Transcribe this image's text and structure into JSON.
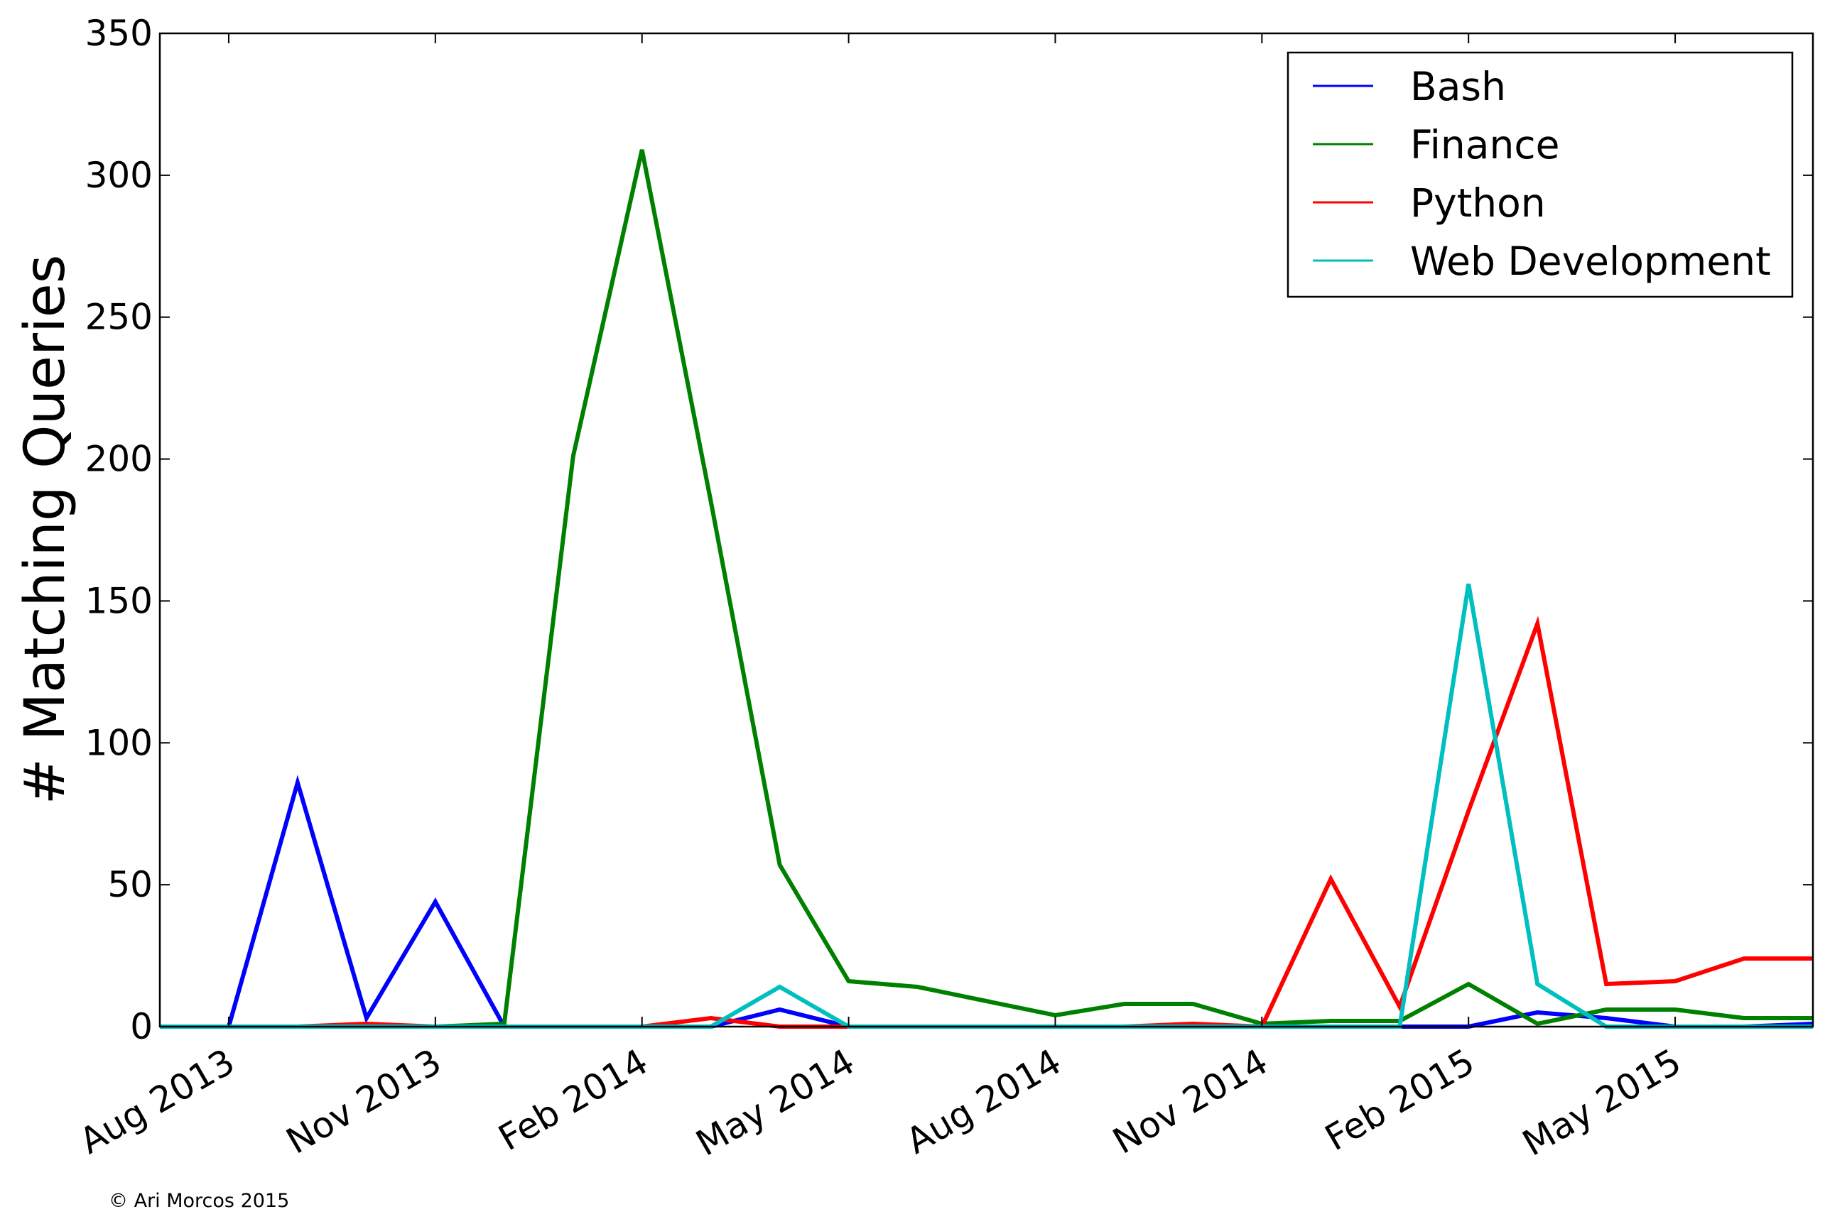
{
  "chart_data": {
    "type": "line",
    "title": "",
    "xlabel": "",
    "ylabel": "# Matching Queries",
    "ylim": [
      0,
      350
    ],
    "yticks": [
      0,
      50,
      100,
      150,
      200,
      250,
      300,
      350
    ],
    "xlim": [
      "2013-07",
      "2015-07"
    ],
    "xticks": [
      {
        "date": "2013-08",
        "label": "Aug 2013"
      },
      {
        "date": "2013-11",
        "label": "Nov 2013"
      },
      {
        "date": "2014-02",
        "label": "Feb 2014"
      },
      {
        "date": "2014-05",
        "label": "May 2014"
      },
      {
        "date": "2014-08",
        "label": "Aug 2014"
      },
      {
        "date": "2014-11",
        "label": "Nov 2014"
      },
      {
        "date": "2015-02",
        "label": "Feb 2015"
      },
      {
        "date": "2015-05",
        "label": "May 2015"
      }
    ],
    "x": [
      "2013-07",
      "2013-08",
      "2013-09",
      "2013-10",
      "2013-11",
      "2013-12",
      "2014-01",
      "2014-02",
      "2014-03",
      "2014-04",
      "2014-05",
      "2014-06",
      "2014-07",
      "2014-08",
      "2014-09",
      "2014-10",
      "2014-11",
      "2014-12",
      "2015-01",
      "2015-02",
      "2015-03",
      "2015-04",
      "2015-05",
      "2015-06",
      "2015-07"
    ],
    "series": [
      {
        "name": "Bash",
        "color": "#0000ff",
        "values": [
          0,
          0,
          86,
          3,
          44,
          0,
          0,
          0,
          0,
          6,
          0,
          0,
          0,
          0,
          0,
          0,
          0,
          0,
          0,
          0,
          5,
          3,
          0,
          0,
          1
        ]
      },
      {
        "name": "Finance",
        "color": "#008000",
        "values": [
          0,
          0,
          0,
          0,
          0,
          1,
          201,
          309,
          185,
          57,
          16,
          14,
          9,
          4,
          8,
          8,
          1,
          2,
          2,
          15,
          1,
          6,
          6,
          3,
          3
        ]
      },
      {
        "name": "Python",
        "color": "#ff0000",
        "values": [
          0,
          0,
          0,
          1,
          0,
          0,
          0,
          0,
          3,
          0,
          0,
          0,
          0,
          0,
          0,
          1,
          0,
          52,
          7,
          76,
          142,
          15,
          16,
          24,
          24
        ]
      },
      {
        "name": "Web Development",
        "color": "#00bfbf",
        "values": [
          0,
          0,
          0,
          0,
          0,
          0,
          0,
          0,
          0,
          14,
          0,
          0,
          0,
          0,
          0,
          0,
          0,
          0,
          0,
          156,
          15,
          0,
          0,
          0,
          0
        ]
      }
    ],
    "grid": false,
    "legend_position": "top-right"
  },
  "footer": {
    "copyright": "© Ari Morcos  2015"
  }
}
